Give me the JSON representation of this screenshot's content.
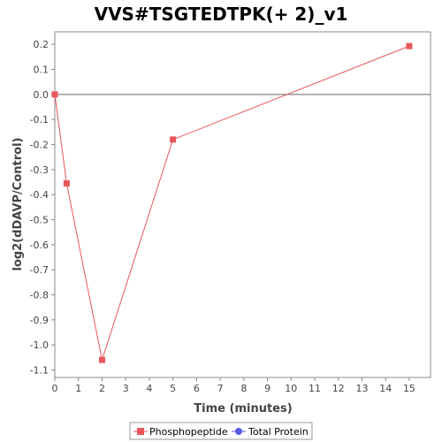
{
  "chart_data": {
    "type": "line",
    "title": "VVS#TSGTEDTPK(+ 2)_v1",
    "xlabel": "Time (minutes)",
    "ylabel": "log2(dDAVP/Control)",
    "xlim": [
      0,
      15.9
    ],
    "ylim": [
      -1.13,
      0.25
    ],
    "x_ticks": [
      "0",
      "1",
      "2",
      "3",
      "4",
      "5",
      "6",
      "7",
      "8",
      "9",
      "10",
      "11",
      "12",
      "13",
      "14",
      "15"
    ],
    "y_ticks": [
      "0.2",
      "0.1",
      "0.0",
      "-0.1",
      "-0.2",
      "-0.3",
      "-0.4",
      "-0.5",
      "-0.6",
      "-0.7",
      "-0.8",
      "-0.9",
      "-1.0",
      "-1.1"
    ],
    "grid": false,
    "zero_line": true,
    "legend_position": "bottom-center",
    "series": [
      {
        "name": "Phosphopeptide",
        "color": "#e8565a",
        "marker": "square",
        "points": [
          {
            "x": 0,
            "y": 0.0
          },
          {
            "x": 0.5,
            "y": -0.355
          },
          {
            "x": 2,
            "y": -1.06
          },
          {
            "x": 5,
            "y": -0.18
          },
          {
            "x": 15,
            "y": 0.193
          }
        ]
      },
      {
        "name": "Total Protein",
        "color": "#5a5ae8",
        "marker": "circle",
        "points": []
      }
    ]
  }
}
